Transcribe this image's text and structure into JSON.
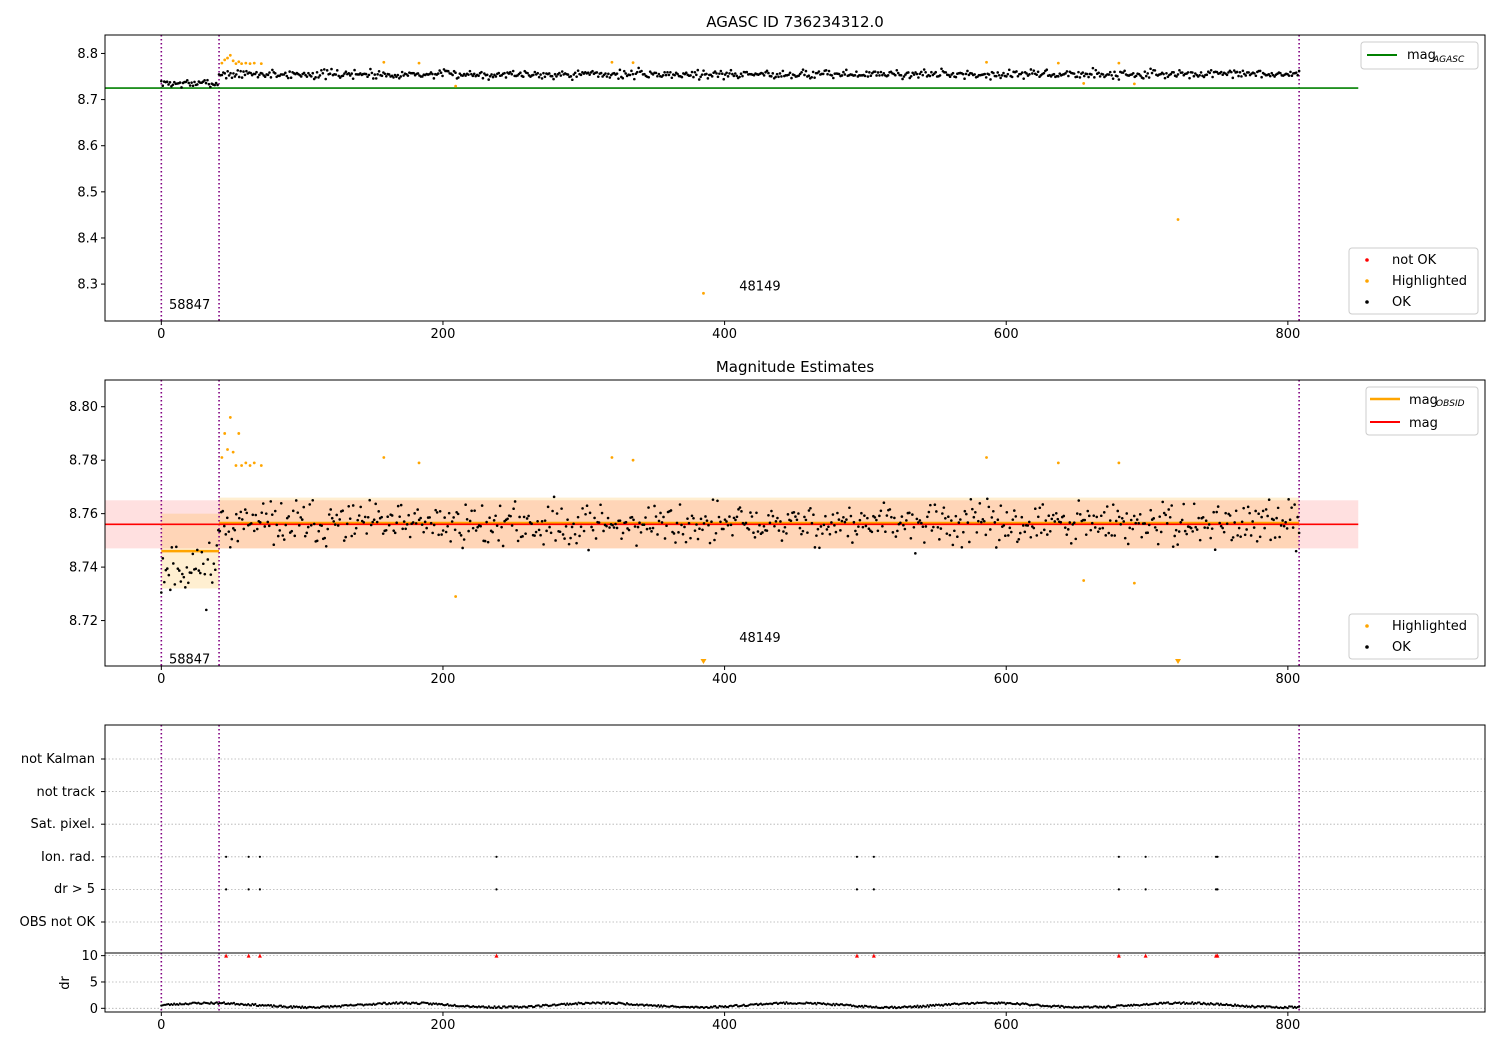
{
  "chart_data": [
    {
      "type": "scatter",
      "title": "AGASC ID 736234312.0",
      "xlim": [
        -40,
        940
      ],
      "ylim": [
        8.22,
        8.84
      ],
      "x_ticks": [
        0,
        200,
        400,
        600,
        800
      ],
      "y_ticks": [
        8.3,
        8.4,
        8.5,
        8.6,
        8.7,
        8.8
      ],
      "y_tick_labels": [
        "8.3",
        "8.4",
        "8.5",
        "8.6",
        "8.7",
        "8.8"
      ],
      "vlines": [
        0,
        41,
        808
      ],
      "annotations": [
        {
          "text": "58847",
          "x": 4,
          "y": 8.255
        },
        {
          "text": "48149",
          "x": 409,
          "y": 8.295
        }
      ],
      "mag_agasc": 8.725,
      "mag_agasc_xrange": [
        -40,
        850
      ],
      "series": [
        {
          "name": "mag",
          "sub": "AGASC",
          "kind": "line",
          "color": "#008000"
        },
        {
          "name": "not OK",
          "kind": "points",
          "color": "#ff0000",
          "x": [],
          "y": []
        },
        {
          "name": "Highlighted",
          "kind": "points",
          "color": "#ffa500",
          "x": [
            43,
            45,
            47,
            49,
            51,
            53,
            55,
            57,
            60,
            63,
            66,
            71,
            158,
            183,
            209,
            320,
            335,
            385,
            586,
            637,
            655,
            680,
            691,
            722
          ],
          "y": [
            8.779,
            8.786,
            8.79,
            8.796,
            8.784,
            8.778,
            8.782,
            8.778,
            8.779,
            8.778,
            8.779,
            8.778,
            8.781,
            8.779,
            8.729,
            8.781,
            8.78,
            8.28,
            8.781,
            8.779,
            8.735,
            8.779,
            8.734,
            8.44
          ]
        },
        {
          "name": "OK",
          "kind": "points",
          "color": "#000000",
          "seed": 7,
          "n": 790,
          "x_range": [
            0,
            808
          ],
          "base": 8.755,
          "spread": 0.009,
          "dip_x_range": [
            0,
            40
          ],
          "dip_base": 8.735,
          "dip_spread": 0.008
        }
      ],
      "legend_lines": [
        {
          "label": "mag",
          "sub": "AGASC",
          "color": "#008000"
        }
      ],
      "legend_points": [
        {
          "label": "not OK",
          "color": "#ff0000"
        },
        {
          "label": "Highlighted",
          "color": "#ffa500"
        },
        {
          "label": "OK",
          "color": "#000000"
        }
      ]
    },
    {
      "type": "scatter",
      "title": "Magnitude Estimates",
      "xlim": [
        -40,
        940
      ],
      "ylim": [
        8.703,
        8.81
      ],
      "x_ticks": [
        0,
        200,
        400,
        600,
        800
      ],
      "y_ticks": [
        8.72,
        8.74,
        8.76,
        8.78,
        8.8
      ],
      "y_tick_labels": [
        "8.72",
        "8.74",
        "8.76",
        "8.78",
        "8.80"
      ],
      "vlines": [
        0,
        41,
        808
      ],
      "annotations": [
        {
          "text": "58847",
          "x": 4,
          "y": 8.7055
        },
        {
          "text": "48149",
          "x": 409,
          "y": 8.7135
        }
      ],
      "mag": 8.756,
      "mag_band": [
        8.747,
        8.765
      ],
      "mag_xrange": [
        -40,
        850
      ],
      "obsid_segments": [
        {
          "x": [
            0,
            41
          ],
          "mag": 8.746,
          "band": [
            8.732,
            8.76
          ]
        },
        {
          "x": [
            41,
            808
          ],
          "mag": 8.7565,
          "band": [
            8.747,
            8.766
          ]
        }
      ],
      "offscale_markers": [
        {
          "x": 385,
          "color": "#ffa500"
        },
        {
          "x": 722,
          "color": "#ffa500"
        }
      ],
      "series": [
        {
          "name": "mag",
          "sub": "OBSID",
          "kind": "line",
          "color": "#ffa500"
        },
        {
          "name": "mag",
          "kind": "line",
          "color": "#ff0000"
        },
        {
          "name": "Highlighted",
          "kind": "points",
          "color": "#ffa500",
          "x": [
            43,
            45,
            47,
            49,
            51,
            53,
            55,
            57,
            60,
            63,
            66,
            71,
            158,
            183,
            209,
            320,
            335,
            586,
            637,
            655,
            680,
            691
          ],
          "y": [
            8.781,
            8.79,
            8.784,
            8.796,
            8.783,
            8.778,
            8.79,
            8.778,
            8.779,
            8.778,
            8.779,
            8.778,
            8.781,
            8.779,
            8.729,
            8.781,
            8.78,
            8.781,
            8.779,
            8.735,
            8.779,
            8.734
          ]
        },
        {
          "name": "OK",
          "kind": "points",
          "color": "#000000",
          "seed": 11,
          "n": 760,
          "x_range": [
            0,
            808
          ],
          "base": 8.756,
          "spread": 0.0075,
          "dip_x_range": [
            0,
            40
          ],
          "dip_base": 8.74,
          "dip_spread": 0.01
        }
      ],
      "legend_lines": [
        {
          "label": "mag",
          "sub": "OBSID",
          "color": "#ffa500"
        },
        {
          "label": "mag",
          "color": "#ff0000"
        }
      ],
      "legend_points": [
        {
          "label": "Highlighted",
          "color": "#ffa500"
        },
        {
          "label": "OK",
          "color": "#000000"
        }
      ]
    },
    {
      "type": "scatter",
      "xlim": [
        -40,
        940
      ],
      "flag_rows": [
        "not Kalman",
        "not track",
        "Sat. pixel.",
        "Ion. rad.",
        "dr > 5",
        "OBS not OK"
      ],
      "vlines": [
        0,
        41,
        808
      ],
      "flags": [
        {
          "row": "Ion. rad.",
          "x": [
            46,
            62,
            70,
            238,
            494,
            506,
            680,
            699,
            749,
            750
          ]
        },
        {
          "row": "dr > 5",
          "x": [
            46,
            62,
            70,
            238,
            494,
            506,
            680,
            699,
            749,
            750
          ]
        }
      ],
      "dr": {
        "ylabel": "dr",
        "ylim": [
          -0.7,
          10.5
        ],
        "y_ticks": [
          0,
          5,
          10
        ],
        "y_tick_labels": [
          "0",
          "5",
          "10"
        ],
        "clipped_x": [
          46,
          62,
          70,
          238,
          494,
          506,
          680,
          699,
          749,
          750
        ],
        "clipped_color": "#ff0000",
        "points": {
          "seed": 23,
          "n": 800,
          "x_range": [
            0,
            808
          ],
          "base": 0.6,
          "amp": 0.4
        }
      }
    }
  ]
}
